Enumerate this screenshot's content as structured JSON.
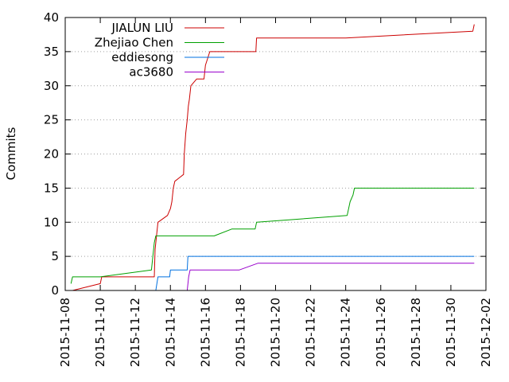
{
  "chart_data": {
    "type": "line",
    "title": "",
    "xlabel": "",
    "ylabel": "Commits",
    "x_range": [
      "2015-11-08",
      "2015-12-02"
    ],
    "ylim": [
      0,
      40
    ],
    "y_ticks": [
      0,
      5,
      10,
      15,
      20,
      25,
      30,
      35,
      40
    ],
    "x_ticks": [
      "2015-11-08",
      "2015-11-10",
      "2015-11-12",
      "2015-11-14",
      "2015-11-16",
      "2015-11-18",
      "2015-11-20",
      "2015-11-22",
      "2015-11-24",
      "2015-11-26",
      "2015-11-28",
      "2015-11-30",
      "2015-12-02"
    ],
    "grid": "horizontal dotted at y ticks",
    "legend_position": "top-left",
    "step": true,
    "series": [
      {
        "name": "JIALUN LIU",
        "color": "#cc0000",
        "points": [
          [
            "2015-11-08 10:00",
            0
          ],
          [
            "2015-11-10 00:00",
            1
          ],
          [
            "2015-11-10 02:00",
            2
          ],
          [
            "2015-11-13 02:00",
            2
          ],
          [
            "2015-11-13 03:00",
            6
          ],
          [
            "2015-11-13 05:00",
            8
          ],
          [
            "2015-11-13 07:00",
            10
          ],
          [
            "2015-11-13 20:00",
            11
          ],
          [
            "2015-11-14 00:00",
            12
          ],
          [
            "2015-11-14 02:00",
            13
          ],
          [
            "2015-11-14 04:00",
            15
          ],
          [
            "2015-11-14 06:00",
            16
          ],
          [
            "2015-11-14 12:00",
            16.5
          ],
          [
            "2015-11-14 18:00",
            17
          ],
          [
            "2015-11-14 19:00",
            20
          ],
          [
            "2015-11-14 21:00",
            23
          ],
          [
            "2015-11-14 23:00",
            25
          ],
          [
            "2015-11-15 00:30",
            27
          ],
          [
            "2015-11-15 02:00",
            28
          ],
          [
            "2015-11-15 04:00",
            30
          ],
          [
            "2015-11-15 12:00",
            31
          ],
          [
            "2015-11-15 22:00",
            31
          ],
          [
            "2015-11-16 00:00",
            33
          ],
          [
            "2015-11-16 03:00",
            34
          ],
          [
            "2015-11-16 06:00",
            35
          ],
          [
            "2015-11-18 21:00",
            35
          ],
          [
            "2015-11-18 22:00",
            37
          ],
          [
            "2015-11-24 00:00",
            37
          ],
          [
            "2015-12-01 06:00",
            38
          ],
          [
            "2015-12-01 08:00",
            39
          ]
        ]
      },
      {
        "name": "Zhejiao Chen",
        "color": "#00a000",
        "points": [
          [
            "2015-11-08 08:00",
            1
          ],
          [
            "2015-11-08 10:00",
            2
          ],
          [
            "2015-11-10 00:00",
            2
          ],
          [
            "2015-11-12 22:00",
            3
          ],
          [
            "2015-11-13 02:00",
            7
          ],
          [
            "2015-11-13 04:00",
            8
          ],
          [
            "2015-11-16 12:00",
            8
          ],
          [
            "2015-11-17 12:00",
            9
          ],
          [
            "2015-11-18 20:00",
            9
          ],
          [
            "2015-11-18 22:00",
            10
          ],
          [
            "2015-11-24 02:00",
            11
          ],
          [
            "2015-11-24 06:00",
            13
          ],
          [
            "2015-11-24 10:00",
            14
          ],
          [
            "2015-11-24 12:00",
            15
          ],
          [
            "2015-12-01 08:00",
            15
          ]
        ]
      },
      {
        "name": "eddiesong",
        "color": "#0070e0",
        "points": [
          [
            "2015-11-13 04:00",
            0
          ],
          [
            "2015-11-13 07:00",
            2
          ],
          [
            "2015-11-13 23:00",
            2
          ],
          [
            "2015-11-14 00:00",
            3
          ],
          [
            "2015-11-14 23:00",
            3
          ],
          [
            "2015-11-15 00:00",
            5
          ],
          [
            "2015-12-01 08:00",
            5
          ]
        ]
      },
      {
        "name": "ac3680",
        "color": "#9900cc",
        "points": [
          [
            "2015-11-14 23:00",
            0
          ],
          [
            "2015-11-15 01:00",
            2
          ],
          [
            "2015-11-15 03:00",
            3
          ],
          [
            "2015-11-17 22:00",
            3
          ],
          [
            "2015-11-19 00:00",
            4
          ],
          [
            "2015-12-01 08:00",
            4
          ]
        ]
      }
    ]
  }
}
